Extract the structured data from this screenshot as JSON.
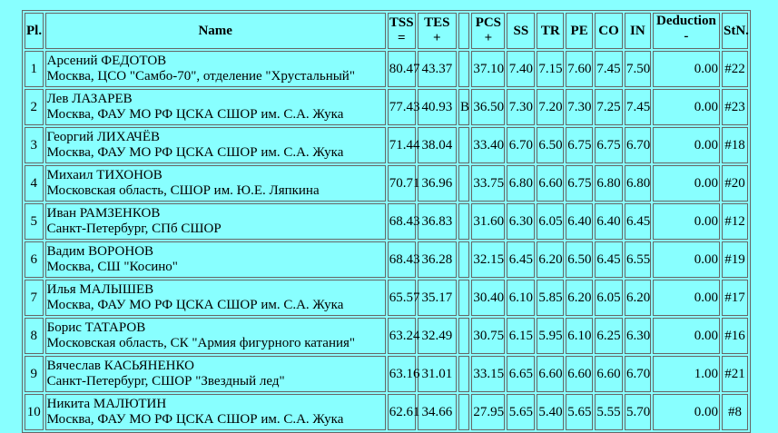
{
  "headers": {
    "pl": "Pl.",
    "name": "Name",
    "tss": "TSS",
    "tss_sub": "=",
    "tes": "TES",
    "tes_sub": "+",
    "flag": "",
    "pcs": "PCS",
    "pcs_sub": "+",
    "ss": "SS",
    "tr": "TR",
    "pe": "PE",
    "co": "CO",
    "in": "IN",
    "ded": "Deduction",
    "ded_sub": "-",
    "stn": "StN."
  },
  "rows": [
    {
      "pl": "1",
      "name": "Арсений ФЕДОТОВ",
      "club": "Москва, ЦСО \"Самбо-70\", отделение \"Хрустальный\"",
      "tss": "80.47",
      "tes": "43.37",
      "flag": "",
      "pcs": "37.10",
      "ss": "7.40",
      "tr": "7.15",
      "pe": "7.60",
      "co": "7.45",
      "in": "7.50",
      "ded": "0.00",
      "stn": "#22"
    },
    {
      "pl": "2",
      "name": "Лев ЛАЗАРЕВ",
      "club": "Москва, ФАУ МО РФ ЦСКА СШОР им. С.А. Жука",
      "tss": "77.43",
      "tes": "40.93",
      "flag": "B",
      "pcs": "36.50",
      "ss": "7.30",
      "tr": "7.20",
      "pe": "7.30",
      "co": "7.25",
      "in": "7.45",
      "ded": "0.00",
      "stn": "#23"
    },
    {
      "pl": "3",
      "name": "Георгий ЛИХАЧЁВ",
      "club": "Москва, ФАУ МО РФ ЦСКА СШОР им. С.А. Жука",
      "tss": "71.44",
      "tes": "38.04",
      "flag": "",
      "pcs": "33.40",
      "ss": "6.70",
      "tr": "6.50",
      "pe": "6.75",
      "co": "6.75",
      "in": "6.70",
      "ded": "0.00",
      "stn": "#18"
    },
    {
      "pl": "4",
      "name": "Михаил ТИХОНОВ",
      "club": "Московская область, СШОР им. Ю.Е. Ляпкина",
      "tss": "70.71",
      "tes": "36.96",
      "flag": "",
      "pcs": "33.75",
      "ss": "6.80",
      "tr": "6.60",
      "pe": "6.75",
      "co": "6.80",
      "in": "6.80",
      "ded": "0.00",
      "stn": "#20"
    },
    {
      "pl": "5",
      "name": "Иван РАМЗЕНКОВ",
      "club": "Санкт-Петербург, СПб СШОР",
      "tss": "68.43",
      "tes": "36.83",
      "flag": "",
      "pcs": "31.60",
      "ss": "6.30",
      "tr": "6.05",
      "pe": "6.40",
      "co": "6.40",
      "in": "6.45",
      "ded": "0.00",
      "stn": "#12"
    },
    {
      "pl": "6",
      "name": "Вадим ВОРОНОВ",
      "club": "Москва, СШ \"Косино\"",
      "tss": "68.43",
      "tes": "36.28",
      "flag": "",
      "pcs": "32.15",
      "ss": "6.45",
      "tr": "6.20",
      "pe": "6.50",
      "co": "6.45",
      "in": "6.55",
      "ded": "0.00",
      "stn": "#19"
    },
    {
      "pl": "7",
      "name": "Илья МАЛЫШЕВ",
      "club": "Москва, ФАУ МО РФ ЦСКА СШОР им. С.А. Жука",
      "tss": "65.57",
      "tes": "35.17",
      "flag": "",
      "pcs": "30.40",
      "ss": "6.10",
      "tr": "5.85",
      "pe": "6.20",
      "co": "6.05",
      "in": "6.20",
      "ded": "0.00",
      "stn": "#17"
    },
    {
      "pl": "8",
      "name": "Борис ТАТАРОВ",
      "club": "Московская область, СК \"Армия фигурного катания\"",
      "tss": "63.24",
      "tes": "32.49",
      "flag": "",
      "pcs": "30.75",
      "ss": "6.15",
      "tr": "5.95",
      "pe": "6.10",
      "co": "6.25",
      "in": "6.30",
      "ded": "0.00",
      "stn": "#16"
    },
    {
      "pl": "9",
      "name": "Вячеслав КАСЬЯНЕНКО",
      "club": "Санкт-Петербург, СШОР \"Звездный лед\"",
      "tss": "63.16",
      "tes": "31.01",
      "flag": "",
      "pcs": "33.15",
      "ss": "6.65",
      "tr": "6.60",
      "pe": "6.60",
      "co": "6.60",
      "in": "6.70",
      "ded": "1.00",
      "stn": "#21"
    },
    {
      "pl": "10",
      "name": "Никита МАЛЮТИН",
      "club": "Москва, ФАУ МО РФ ЦСКА СШОР им. С.А. Жука",
      "tss": "62.61",
      "tes": "34.66",
      "flag": "",
      "pcs": "27.95",
      "ss": "5.65",
      "tr": "5.40",
      "pe": "5.65",
      "co": "5.55",
      "in": "5.70",
      "ded": "0.00",
      "stn": "#8"
    }
  ]
}
